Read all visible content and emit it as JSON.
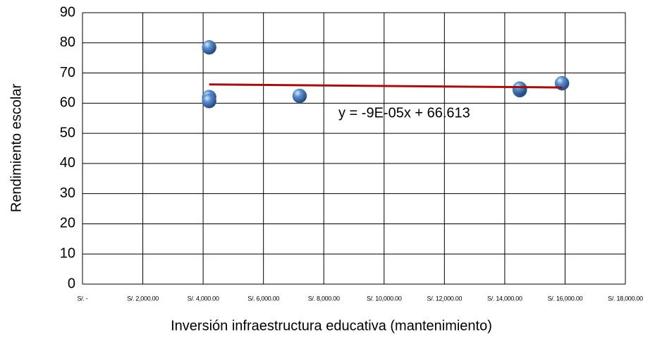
{
  "chart_data": {
    "type": "scatter",
    "xlabel": "Inversión infraestructura educativa (mantenimiento)",
    "ylabel": "Rendimiento escolar",
    "series": [
      {
        "color": "#3b6fb3",
        "x": [
          4200,
          4200,
          4200,
          7200,
          14500,
          14500,
          15900
        ],
        "values": [
          78.5,
          62,
          60.7,
          62.4,
          64.3,
          64.8,
          66.6
        ]
      }
    ],
    "trendline": {
      "label": "y = -9E-05x + 66.613",
      "color": "#a01010",
      "x": [
        4200,
        15900
      ],
      "y": [
        66.2,
        65.2
      ]
    },
    "xlim": [
      0,
      18000
    ],
    "xticks": [
      {
        "value": 0,
        "label": "S/. -"
      },
      {
        "value": 2000,
        "label": "S/. 2,000.00"
      },
      {
        "value": 4000,
        "label": "S/. 4,000.00"
      },
      {
        "value": 6000,
        "label": "S/. 6,000.00"
      },
      {
        "value": 8000,
        "label": "S/. 8,000.00"
      },
      {
        "value": 10000,
        "label": "S/. 10,000.00"
      },
      {
        "value": 12000,
        "label": "S/. 12,000.00"
      },
      {
        "value": 14000,
        "label": "S/. 14,000.00"
      },
      {
        "value": 16000,
        "label": "S/. 16,000.00"
      },
      {
        "value": 18000,
        "label": "S/. 18,000.00"
      }
    ],
    "ylim": [
      0,
      90
    ],
    "yticks": [
      0,
      10,
      20,
      30,
      40,
      50,
      60,
      70,
      80,
      90
    ],
    "grid": true
  }
}
